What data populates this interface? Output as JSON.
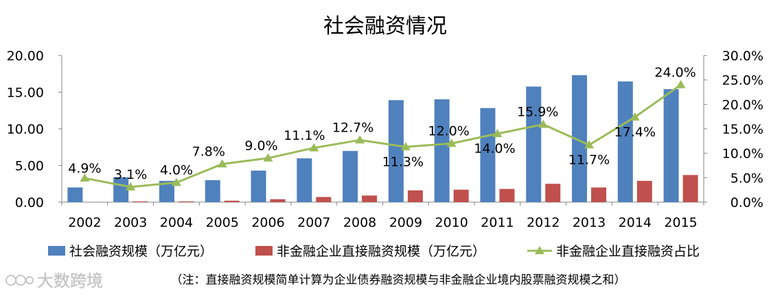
{
  "chart_data": {
    "type": "bar",
    "title": "社会融资情况",
    "categories": [
      "2002",
      "2003",
      "2004",
      "2005",
      "2006",
      "2007",
      "2008",
      "2009",
      "2010",
      "2011",
      "2012",
      "2013",
      "2014",
      "2015"
    ],
    "series": [
      {
        "name": "社会融资规模（万亿元）",
        "kind": "bar",
        "axis": "left",
        "color": "#4F81BD",
        "values": [
          2.0,
          3.4,
          2.9,
          3.0,
          4.3,
          5.97,
          6.98,
          13.91,
          14.02,
          12.83,
          15.76,
          17.32,
          16.46,
          15.41
        ]
      },
      {
        "name": "非金融企业直接融资规模（万亿元）",
        "kind": "bar",
        "axis": "left",
        "color": "#C0504D",
        "values": [
          0.0,
          0.1,
          0.1,
          0.2,
          0.4,
          0.7,
          0.9,
          1.6,
          1.7,
          1.8,
          2.5,
          2.0,
          2.9,
          3.7
        ]
      },
      {
        "name": "非金融企业直接融资占比",
        "kind": "line",
        "axis": "right",
        "color": "#9BBB59",
        "values": [
          4.9,
          3.1,
          4.0,
          7.8,
          9.0,
          11.1,
          12.7,
          11.3,
          12.0,
          14.0,
          15.9,
          11.7,
          17.4,
          24.0
        ],
        "labels": [
          "4.9%",
          "3.1%",
          "4.0%",
          "7.8%",
          "9.0%",
          "11.1%",
          "12.7%",
          "11.3%",
          "12.0%",
          "14.0%",
          "15.9%",
          "11.7%",
          "17.4%",
          "24.0%"
        ]
      }
    ],
    "y_left": {
      "min": 0,
      "max": 20,
      "ticks": [
        "0.00",
        "5.00",
        "10.00",
        "15.00",
        "20.00"
      ]
    },
    "y_right": {
      "min": 0,
      "max": 30,
      "ticks": [
        "0.0%",
        "5.0%",
        "10.0%",
        "15.0%",
        "20.0%",
        "25.0%",
        "30.0%"
      ]
    },
    "legend_position": "bottom",
    "grid": false,
    "note": "（注：直接融资规模简单计算为企业债券融资规模与非金融企业境内股票融资规模之和）",
    "watermark": "大数跨境"
  }
}
